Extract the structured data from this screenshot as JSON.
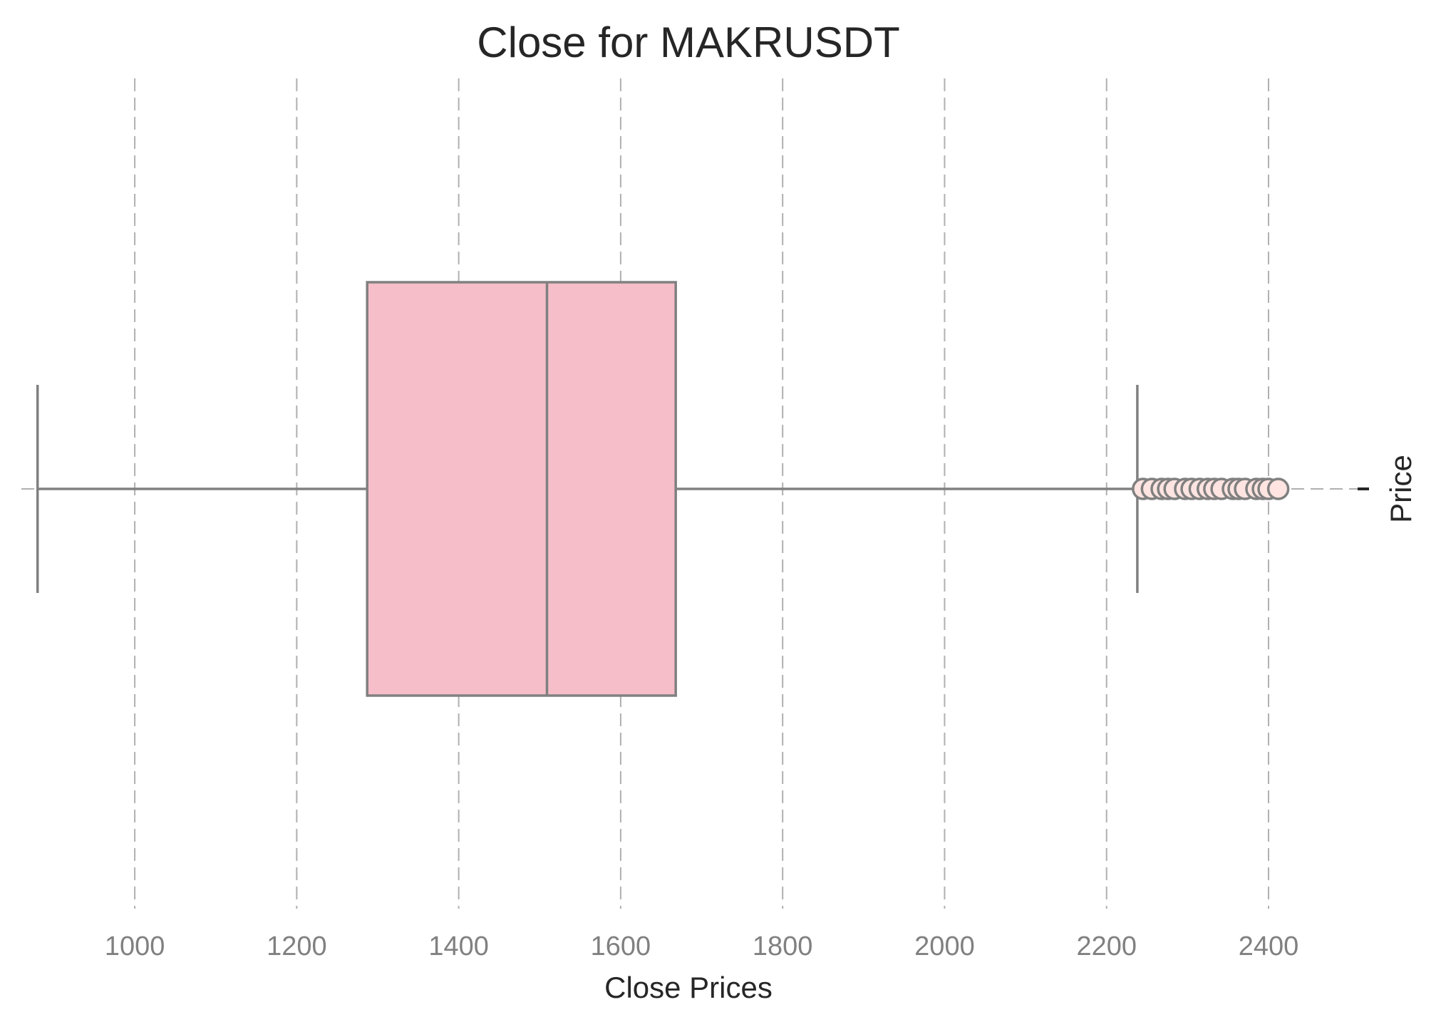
{
  "chart_data": {
    "type": "box",
    "title": "Close for MAKRUSDT",
    "xlabel": "Close Prices",
    "ylabel": "Price",
    "y_tick_labels": [
      ""
    ],
    "orientation": "horizontal",
    "xlim": [
      860,
      2510
    ],
    "x_ticks": [
      1000,
      1200,
      1400,
      1600,
      1800,
      2000,
      2200,
      2400
    ],
    "grid": "x-dashed",
    "box": {
      "whisker_low": 880,
      "q1": 1287,
      "median": 1509,
      "q3": 1668,
      "whisker_high": 2238
    },
    "outliers": [
      2245,
      2256,
      2268,
      2276,
      2284,
      2297,
      2305,
      2315,
      2325,
      2333,
      2342,
      2356,
      2363,
      2371,
      2385,
      2393,
      2400,
      2412
    ],
    "colors": {
      "box_fill": "#f5bec8",
      "line": "#808080",
      "outlier_fill": "#ffe4e1",
      "grid": "#b0b0b0"
    }
  }
}
